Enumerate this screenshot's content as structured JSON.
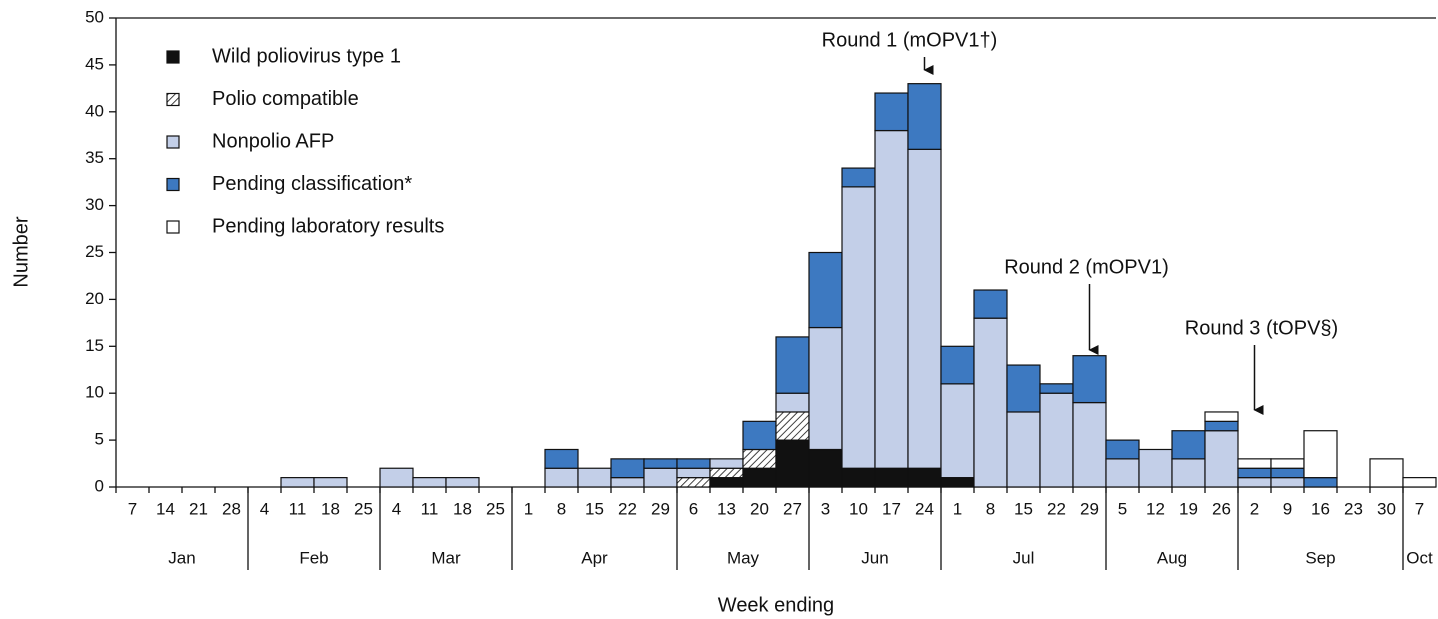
{
  "chart_data": {
    "type": "stacked-bar",
    "y_label": "Number",
    "x_label": "Week ending",
    "categories": [
      "7",
      "14",
      "21",
      "28",
      "4",
      "11",
      "18",
      "25",
      "4",
      "11",
      "18",
      "25",
      "1",
      "8",
      "15",
      "22",
      "29",
      "6",
      "13",
      "20",
      "27",
      "3",
      "10",
      "17",
      "24",
      "1",
      "8",
      "15",
      "22",
      "29",
      "5",
      "12",
      "19",
      "26",
      "2",
      "9",
      "16",
      "23",
      "30",
      "7"
    ],
    "months": [
      "Jan",
      "Feb",
      "Mar",
      "Apr",
      "May",
      "Jun",
      "Jul",
      "Aug",
      "Sep",
      "Oct"
    ],
    "series": [
      {
        "name": "Wild poliovirus type 1",
        "color": "#111111",
        "values": [
          0,
          0,
          0,
          0,
          0,
          0,
          0,
          0,
          0,
          0,
          0,
          0,
          0,
          0,
          0,
          0,
          0,
          0,
          1,
          2,
          5,
          4,
          2,
          2,
          2,
          1,
          0,
          0,
          0,
          0,
          0,
          0,
          0,
          0,
          0,
          0,
          0,
          0,
          0,
          0
        ]
      },
      {
        "name": "Polio compatible",
        "color": "#ffffff",
        "pattern": "diagonal",
        "values": [
          0,
          0,
          0,
          0,
          0,
          0,
          0,
          0,
          0,
          0,
          0,
          0,
          0,
          0,
          0,
          0,
          0,
          1,
          1,
          2,
          3,
          0,
          0,
          0,
          0,
          0,
          0,
          0,
          0,
          0,
          0,
          0,
          0,
          0,
          0,
          0,
          0,
          0,
          0,
          0
        ]
      },
      {
        "name": "Nonpolio AFP",
        "color": "#c3cfe8",
        "values": [
          0,
          0,
          0,
          0,
          0,
          1,
          1,
          0,
          2,
          1,
          1,
          0,
          0,
          2,
          2,
          1,
          2,
          1,
          1,
          0,
          2,
          13,
          30,
          36,
          34,
          10,
          18,
          8,
          10,
          9,
          3,
          4,
          3,
          6,
          1,
          1,
          0,
          0,
          0,
          0
        ]
      },
      {
        "name": "Pending classification*",
        "color": "#3d79c1",
        "values": [
          0,
          0,
          0,
          0,
          0,
          0,
          0,
          0,
          0,
          0,
          0,
          0,
          0,
          2,
          0,
          2,
          1,
          1,
          0,
          3,
          6,
          8,
          2,
          4,
          7,
          4,
          3,
          5,
          1,
          5,
          2,
          0,
          3,
          1,
          1,
          1,
          1,
          0,
          0,
          0
        ]
      },
      {
        "name": "Pending laboratory results",
        "color": "#ffffff",
        "values": [
          0,
          0,
          0,
          0,
          0,
          0,
          0,
          0,
          0,
          0,
          0,
          0,
          0,
          0,
          0,
          0,
          0,
          0,
          0,
          0,
          0,
          0,
          0,
          0,
          0,
          0,
          0,
          0,
          0,
          0,
          0,
          0,
          0,
          1,
          1,
          1,
          5,
          0,
          3,
          1
        ]
      }
    ],
    "annotations": [
      "Round 1 (mOPV1†)",
      "Round 2 (mOPV1)",
      "Round 3 (tOPV§)"
    ],
    "ylim": [
      0,
      50
    ],
    "yticks": [
      0,
      5,
      10,
      15,
      20,
      25,
      30,
      35,
      40,
      45,
      50
    ],
    "grid": false
  }
}
